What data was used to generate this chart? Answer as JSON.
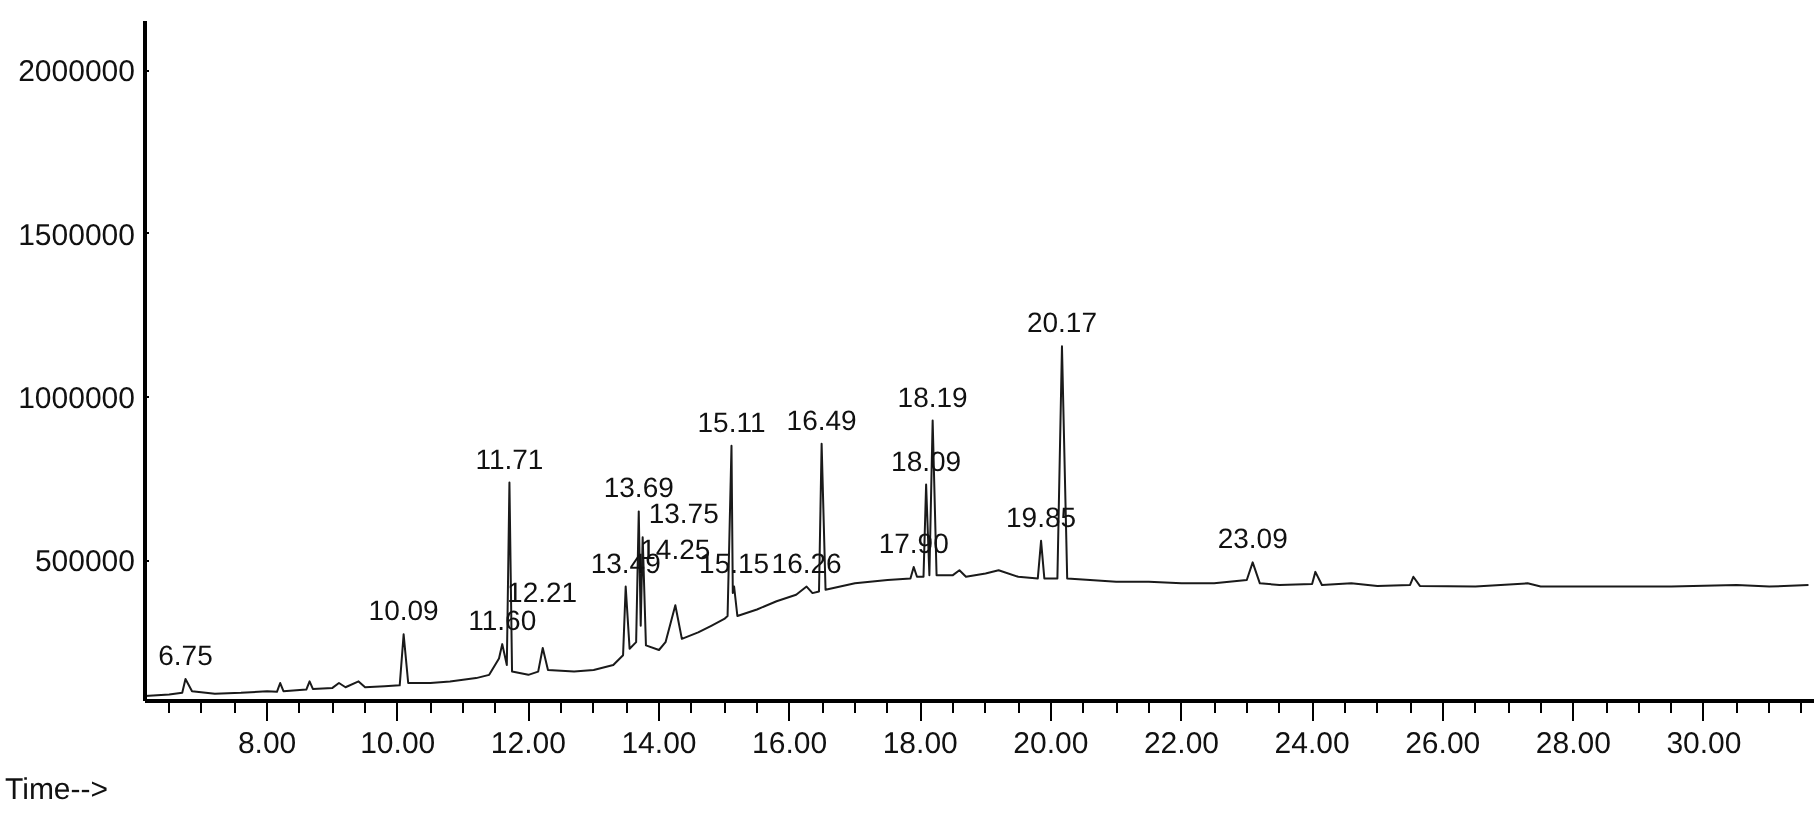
{
  "chart_data": {
    "type": "line",
    "xlabel": "Time-->",
    "grid": false,
    "marker": "none",
    "line_style": "solid",
    "xlim": [
      6.13,
      31.7
    ],
    "ylim": [
      70000,
      2150000
    ],
    "xticks": [
      {
        "value": 8,
        "label": "8.00"
      },
      {
        "value": 10,
        "label": "10.00"
      },
      {
        "value": 12,
        "label": "12.00"
      },
      {
        "value": 14,
        "label": "14.00"
      },
      {
        "value": 16,
        "label": "16.00"
      },
      {
        "value": 18,
        "label": "18.00"
      },
      {
        "value": 20,
        "label": "20.00"
      },
      {
        "value": 22,
        "label": "22.00"
      },
      {
        "value": 24,
        "label": "24.00"
      },
      {
        "value": 26,
        "label": "26.00"
      },
      {
        "value": 28,
        "label": "28.00"
      },
      {
        "value": 30,
        "label": "30.00"
      }
    ],
    "yticks": [
      500000,
      1000000,
      1500000,
      2000000
    ],
    "series": [
      {
        "color": "#1a1a1a",
        "x": [
          6.13,
          6.5,
          6.7,
          6.75,
          6.85,
          7.2,
          7.6,
          8.0,
          8.15,
          8.2,
          8.25,
          8.6,
          8.65,
          8.7,
          9.0,
          9.1,
          9.2,
          9.4,
          9.5,
          9.8,
          10.03,
          10.09,
          10.16,
          10.5,
          10.8,
          11.2,
          11.4,
          11.55,
          11.6,
          11.67,
          11.71,
          11.75,
          12.0,
          12.15,
          12.22,
          12.3,
          12.7,
          13.0,
          13.3,
          13.45,
          13.49,
          13.55,
          13.65,
          13.69,
          13.72,
          13.75,
          13.8,
          14.0,
          14.1,
          14.25,
          14.35,
          14.6,
          14.8,
          15.0,
          15.05,
          15.11,
          15.13,
          15.15,
          15.2,
          15.5,
          15.8,
          16.1,
          16.26,
          16.35,
          16.45,
          16.49,
          16.55,
          17.0,
          17.5,
          17.85,
          17.9,
          17.95,
          18.05,
          18.09,
          18.14,
          18.19,
          18.25,
          18.5,
          18.6,
          18.7,
          19.0,
          19.2,
          19.5,
          19.8,
          19.85,
          19.9,
          20.1,
          20.17,
          20.25,
          20.6,
          21.0,
          21.5,
          22.0,
          22.5,
          23.0,
          23.09,
          23.2,
          23.5,
          24.0,
          24.05,
          24.15,
          24.6,
          25.0,
          25.5,
          25.55,
          25.65,
          26.5,
          27.3,
          27.5,
          28.5,
          29.5,
          30.5,
          31.0,
          31.6
        ],
        "values": [
          85000,
          90000,
          95000,
          137000,
          100000,
          92000,
          95000,
          100000,
          98000,
          125000,
          100000,
          105000,
          130000,
          107000,
          110000,
          125000,
          112000,
          130000,
          112000,
          115000,
          118000,
          274000,
          125000,
          125000,
          130000,
          140000,
          150000,
          200000,
          244000,
          180000,
          738000,
          160000,
          150000,
          160000,
          232000,
          165000,
          160000,
          165000,
          180000,
          210000,
          420000,
          230000,
          250000,
          650000,
          300000,
          571000,
          240000,
          226000,
          250000,
          363000,
          260000,
          280000,
          300000,
          321000,
          330000,
          851000,
          400000,
          420000,
          330000,
          350000,
          375000,
          395000,
          420000,
          400000,
          405000,
          857000,
          410000,
          430000,
          440000,
          445000,
          480000,
          450000,
          450000,
          732000,
          455000,
          928000,
          455000,
          455000,
          470000,
          450000,
          460000,
          470000,
          450000,
          445000,
          560000,
          445000,
          445000,
          1155000,
          445000,
          440000,
          435000,
          435000,
          430000,
          430000,
          440000,
          494000,
          430000,
          425000,
          428000,
          465000,
          425000,
          430000,
          422000,
          425000,
          450000,
          422000,
          420000,
          430000,
          420000,
          420000,
          420000,
          425000,
          420000,
          425000
        ]
      }
    ],
    "annotations": [
      {
        "text": "6.75",
        "x": 6.75,
        "y": 137000
      },
      {
        "text": "10.09",
        "x": 10.09,
        "y": 274000
      },
      {
        "text": "11.60",
        "x": 11.6,
        "y": 244000
      },
      {
        "text": "11.71",
        "x": 11.71,
        "y": 738000
      },
      {
        "text": "12.21",
        "x": 12.21,
        "y": 232000
      },
      {
        "text": "13.49",
        "x": 13.49,
        "y": 420000
      },
      {
        "text": "13.69",
        "x": 13.69,
        "y": 650000
      },
      {
        "text": "13.75",
        "x": 13.75,
        "y": 571000
      },
      {
        "text": "14.25",
        "x": 14.25,
        "y": 363000
      },
      {
        "text": "15.11",
        "x": 15.11,
        "y": 851000
      },
      {
        "text": "15.15",
        "x": 15.15,
        "y": 420000
      },
      {
        "text": "16.26",
        "x": 16.26,
        "y": 420000
      },
      {
        "text": "16.49",
        "x": 16.49,
        "y": 857000
      },
      {
        "text": "17.90",
        "x": 17.9,
        "y": 480000
      },
      {
        "text": "18.09",
        "x": 18.09,
        "y": 732000
      },
      {
        "text": "18.19",
        "x": 18.19,
        "y": 928000
      },
      {
        "text": "19.85",
        "x": 19.85,
        "y": 560000
      },
      {
        "text": "20.17",
        "x": 20.17,
        "y": 1155000
      },
      {
        "text": "23.09",
        "x": 23.09,
        "y": 494000
      }
    ]
  }
}
